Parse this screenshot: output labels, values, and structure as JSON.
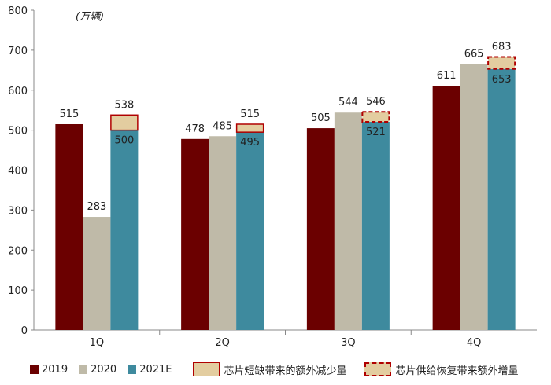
{
  "chart_data": {
    "type": "bar",
    "unit_label": "(万辆)",
    "categories": [
      "1Q",
      "2Q",
      "3Q",
      "4Q"
    ],
    "ylim": [
      0,
      800
    ],
    "yticks": [
      0,
      100,
      200,
      300,
      400,
      500,
      600,
      700,
      800
    ],
    "grid": false,
    "series": [
      {
        "name": "2019",
        "color": "#6b0000",
        "values": [
          515,
          478,
          505,
          611
        ]
      },
      {
        "name": "2020",
        "color": "#bfbaa8",
        "values": [
          283,
          485,
          544,
          665
        ]
      },
      {
        "name": "2021E",
        "color": "#3e8a9e",
        "values": [
          500,
          495,
          521,
          653
        ]
      }
    ],
    "adjusted_2021E": [
      538,
      515,
      546,
      683
    ],
    "overlay": [
      {
        "name": "芯片短缺带来的额外减少量",
        "style": "solid",
        "fill": "#e3cda0",
        "border": "#b00000",
        "categories": [
          "1Q",
          "2Q"
        ]
      },
      {
        "name": "芯片供给恢复带来额外增量",
        "style": "dashed",
        "fill": "#e3cda0",
        "border": "#b00000",
        "categories": [
          "3Q",
          "4Q"
        ]
      }
    ]
  },
  "legend": {
    "items": [
      {
        "label": "2019",
        "color": "#6b0000"
      },
      {
        "label": "2020",
        "color": "#bfbaa8"
      },
      {
        "label": "2021E",
        "color": "#3e8a9e"
      }
    ],
    "box_solid_label": "芯片短缺带来的额外减少量",
    "box_dashed_label": "芯片供给恢复带来额外增量"
  }
}
